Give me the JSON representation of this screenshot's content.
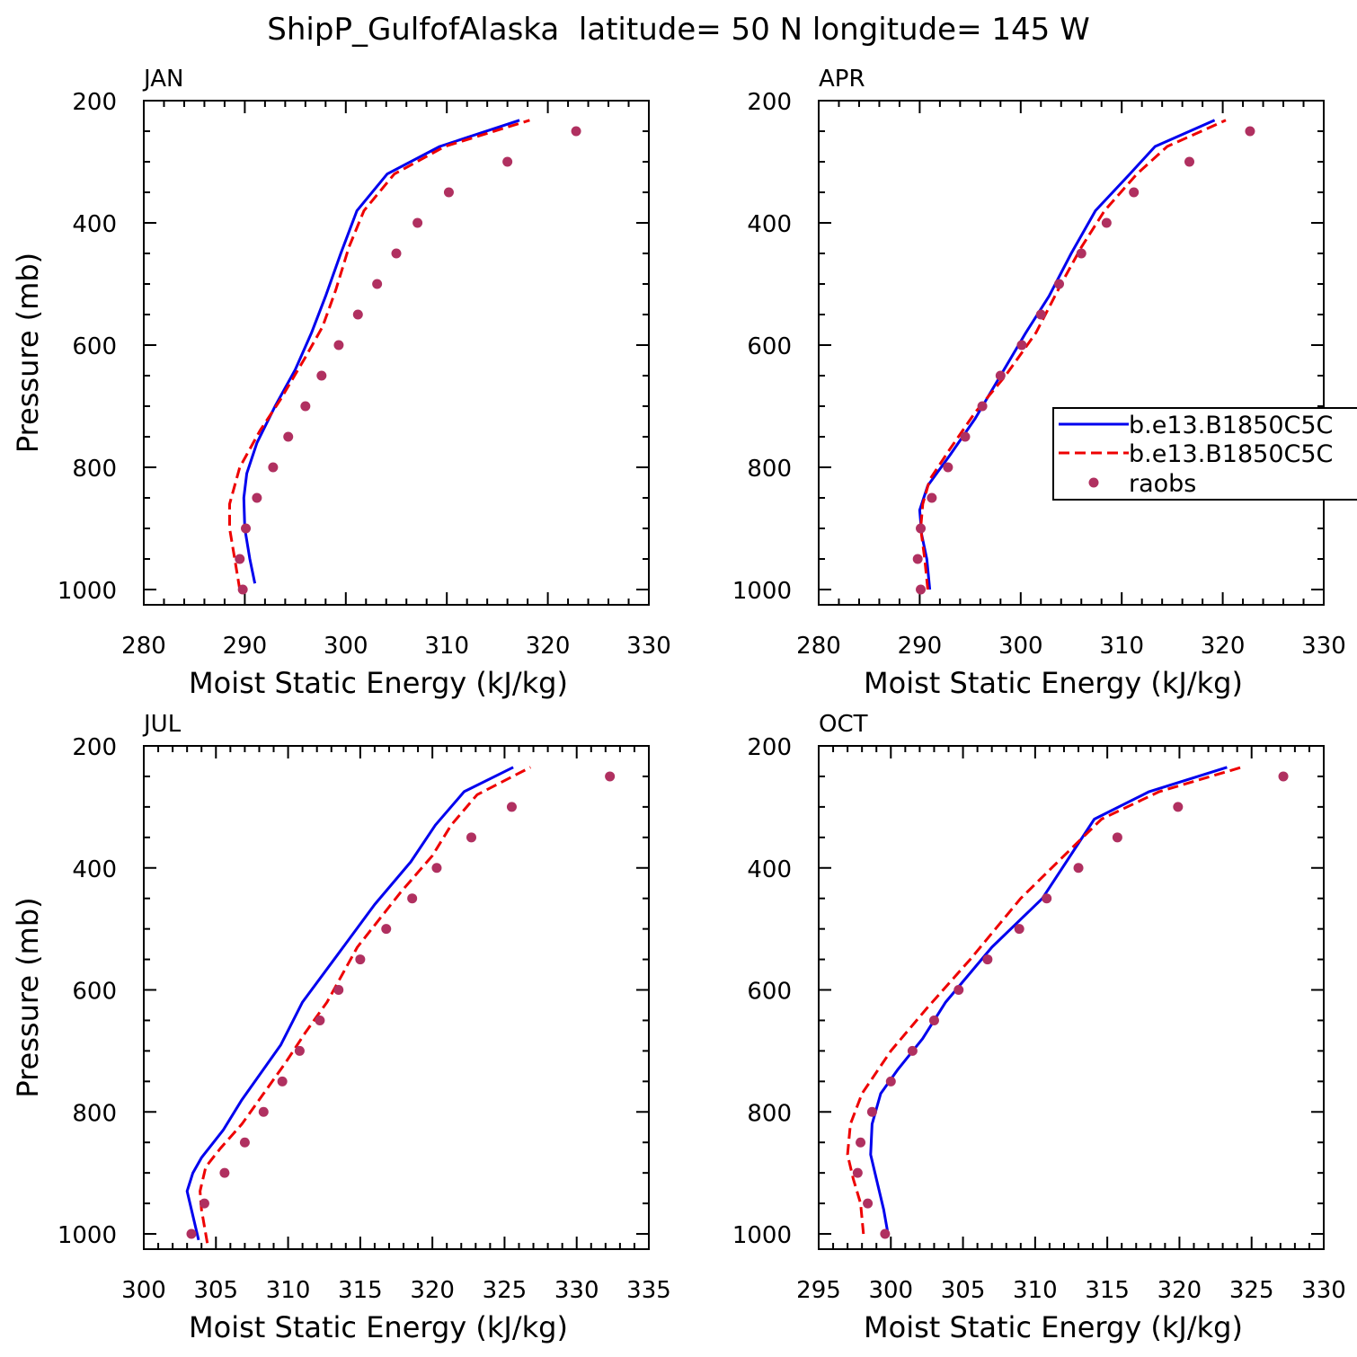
{
  "figure": {
    "title": "ShipP_GulfofAlaska  latitude= 50 N longitude= 145 W",
    "legend": {
      "entries": [
        {
          "label": "b.e13.B1850C5C",
          "style": "solid",
          "color": "#0000ee"
        },
        {
          "label": "b.e13.B1850C5C",
          "style": "dashed",
          "color": "#ee0000"
        },
        {
          "label": "raobs",
          "style": "dots",
          "color": "#b03060"
        }
      ]
    }
  },
  "colors": {
    "model1": "#0000ee",
    "model2": "#ee0000",
    "obs": "#b03060"
  },
  "chart_data": [
    {
      "type": "line",
      "title": "JAN",
      "xlabel": "Moist Static Energy (kJ/kg)",
      "ylabel": "Pressure (mb)",
      "xlim": [
        280,
        330
      ],
      "ylim": [
        1025,
        200
      ],
      "xticks": [
        280,
        290,
        300,
        310,
        320,
        330
      ],
      "yticks": [
        200,
        400,
        600,
        800,
        1000
      ],
      "series": [
        {
          "name": "b.e13.B1850C5C",
          "style": "solid",
          "color": "#0000ee",
          "points": [
            [
              291.0,
              990
            ],
            [
              290.5,
              950
            ],
            [
              290.0,
              900
            ],
            [
              289.9,
              850
            ],
            [
              290.2,
              810
            ],
            [
              291.2,
              760
            ],
            [
              293.0,
              700
            ],
            [
              295.0,
              640
            ],
            [
              296.6,
              580
            ],
            [
              298.0,
              520
            ],
            [
              299.5,
              450
            ],
            [
              301.1,
              380
            ],
            [
              304.1,
              320
            ],
            [
              309.3,
              275
            ],
            [
              317.2,
              232
            ]
          ]
        },
        {
          "name": "b.e13.B1850C5C",
          "style": "dashed",
          "color": "#ee0000",
          "points": [
            [
              289.5,
              1000
            ],
            [
              289.0,
              950
            ],
            [
              288.5,
              900
            ],
            [
              288.5,
              860
            ],
            [
              289.5,
              800
            ],
            [
              291.5,
              740
            ],
            [
              293.5,
              690
            ],
            [
              296.0,
              620
            ],
            [
              297.7,
              570
            ],
            [
              299.0,
              510
            ],
            [
              300.3,
              440
            ],
            [
              301.8,
              380
            ],
            [
              304.8,
              320
            ],
            [
              309.8,
              275
            ],
            [
              318.2,
              232
            ]
          ]
        },
        {
          "name": "raobs",
          "style": "dots",
          "color": "#b03060",
          "points": [
            [
              289.8,
              1000
            ],
            [
              289.5,
              950
            ],
            [
              290.1,
              900
            ],
            [
              291.2,
              850
            ],
            [
              292.8,
              800
            ],
            [
              294.3,
              750
            ],
            [
              296.0,
              700
            ],
            [
              297.6,
              650
            ],
            [
              299.3,
              600
            ],
            [
              301.2,
              550
            ],
            [
              303.1,
              500
            ],
            [
              305.0,
              450
            ],
            [
              307.1,
              400
            ],
            [
              310.2,
              350
            ],
            [
              316.0,
              300
            ],
            [
              322.8,
              250
            ]
          ]
        }
      ]
    },
    {
      "type": "line",
      "title": "APR",
      "xlabel": "Moist Static Energy (kJ/kg)",
      "ylabel": "",
      "xlim": [
        280,
        330
      ],
      "ylim": [
        1025,
        200
      ],
      "xticks": [
        280,
        290,
        300,
        310,
        320,
        330
      ],
      "yticks": [
        200,
        400,
        600,
        800,
        1000
      ],
      "series": [
        {
          "name": "b.e13.B1850C5C",
          "style": "solid",
          "color": "#0000ee",
          "points": [
            [
              291.0,
              1000
            ],
            [
              290.7,
              950
            ],
            [
              290.2,
              910
            ],
            [
              290.0,
              870
            ],
            [
              290.8,
              830
            ],
            [
              293.0,
              780
            ],
            [
              295.5,
              720
            ],
            [
              298.0,
              650
            ],
            [
              300.5,
              580
            ],
            [
              302.8,
              520
            ],
            [
              305.0,
              450
            ],
            [
              307.4,
              380
            ],
            [
              310.8,
              320
            ],
            [
              313.3,
              275
            ],
            [
              319.2,
              232
            ]
          ]
        },
        {
          "name": "b.e13.B1850C5C",
          "style": "dashed",
          "color": "#ee0000",
          "points": [
            [
              290.8,
              1000
            ],
            [
              290.5,
              950
            ],
            [
              290.1,
              900
            ],
            [
              290.3,
              860
            ],
            [
              291.0,
              820
            ],
            [
              293.0,
              770
            ],
            [
              295.5,
              710
            ],
            [
              298.5,
              650
            ],
            [
              301.5,
              580
            ],
            [
              304.0,
              500
            ],
            [
              306.0,
              440
            ],
            [
              308.3,
              380
            ],
            [
              311.5,
              320
            ],
            [
              314.5,
              275
            ],
            [
              320.3,
              232
            ]
          ]
        },
        {
          "name": "raobs",
          "style": "dots",
          "color": "#b03060",
          "points": [
            [
              290.1,
              1000
            ],
            [
              289.8,
              950
            ],
            [
              290.1,
              900
            ],
            [
              291.2,
              850
            ],
            [
              292.8,
              800
            ],
            [
              294.5,
              750
            ],
            [
              296.2,
              700
            ],
            [
              298.0,
              650
            ],
            [
              300.1,
              600
            ],
            [
              302.0,
              550
            ],
            [
              303.8,
              500
            ],
            [
              306.0,
              450
            ],
            [
              308.5,
              400
            ],
            [
              311.2,
              350
            ],
            [
              316.7,
              300
            ],
            [
              322.7,
              250
            ]
          ]
        }
      ]
    },
    {
      "type": "line",
      "title": "JUL",
      "xlabel": "Moist Static Energy (kJ/kg)",
      "ylabel": "Pressure (mb)",
      "xlim": [
        300,
        335
      ],
      "ylim": [
        1025,
        200
      ],
      "xticks": [
        300,
        305,
        310,
        315,
        320,
        325,
        330,
        335
      ],
      "yticks": [
        200,
        400,
        600,
        800,
        1000
      ],
      "series": [
        {
          "name": "b.e13.B1850C5C",
          "style": "solid",
          "color": "#0000ee",
          "points": [
            [
              303.8,
              1010
            ],
            [
              303.3,
              960
            ],
            [
              303.0,
              930
            ],
            [
              303.4,
              900
            ],
            [
              304.0,
              875
            ],
            [
              305.5,
              830
            ],
            [
              306.8,
              780
            ],
            [
              308.0,
              740
            ],
            [
              309.5,
              690
            ],
            [
              311.0,
              620
            ],
            [
              313.5,
              540
            ],
            [
              316.0,
              460
            ],
            [
              318.5,
              390
            ],
            [
              320.2,
              330
            ],
            [
              322.2,
              275
            ],
            [
              325.6,
              235
            ]
          ]
        },
        {
          "name": "b.e13.B1850C5C",
          "style": "dashed",
          "color": "#ee0000",
          "points": [
            [
              304.4,
              1015
            ],
            [
              304.0,
              960
            ],
            [
              303.9,
              930
            ],
            [
              304.3,
              890
            ],
            [
              305.3,
              860
            ],
            [
              306.8,
              820
            ],
            [
              308.3,
              770
            ],
            [
              309.8,
              720
            ],
            [
              311.2,
              670
            ],
            [
              312.7,
              620
            ],
            [
              314.8,
              530
            ],
            [
              317.8,
              440
            ],
            [
              320.0,
              380
            ],
            [
              321.3,
              330
            ],
            [
              323.1,
              280
            ],
            [
              326.8,
              235
            ]
          ]
        },
        {
          "name": "raobs",
          "style": "dots",
          "color": "#b03060",
          "points": [
            [
              303.3,
              1000
            ],
            [
              304.2,
              950
            ],
            [
              305.6,
              900
            ],
            [
              307.0,
              850
            ],
            [
              308.3,
              800
            ],
            [
              309.6,
              750
            ],
            [
              310.8,
              700
            ],
            [
              312.2,
              650
            ],
            [
              313.5,
              600
            ],
            [
              315.0,
              550
            ],
            [
              316.8,
              500
            ],
            [
              318.6,
              450
            ],
            [
              320.3,
              400
            ],
            [
              322.7,
              350
            ],
            [
              325.5,
              300
            ],
            [
              332.3,
              250
            ]
          ]
        }
      ]
    },
    {
      "type": "line",
      "title": "OCT",
      "xlabel": "Moist Static Energy (kJ/kg)",
      "ylabel": "",
      "xlim": [
        295,
        330
      ],
      "ylim": [
        1025,
        200
      ],
      "xticks": [
        295,
        300,
        305,
        310,
        315,
        320,
        325,
        330
      ],
      "yticks": [
        200,
        400,
        600,
        800,
        1000
      ],
      "series": [
        {
          "name": "b.e13.B1850C5C",
          "style": "solid",
          "color": "#0000ee",
          "points": [
            [
              299.8,
              1000
            ],
            [
              299.5,
              960
            ],
            [
              299.0,
              910
            ],
            [
              298.6,
              870
            ],
            [
              298.7,
              820
            ],
            [
              299.3,
              770
            ],
            [
              300.5,
              730
            ],
            [
              302.2,
              680
            ],
            [
              303.8,
              620
            ],
            [
              307.0,
              530
            ],
            [
              310.5,
              450
            ],
            [
              314.1,
              320
            ],
            [
              317.9,
              275
            ],
            [
              323.3,
              235
            ]
          ]
        },
        {
          "name": "b.e13.B1850C5C",
          "style": "dashed",
          "color": "#ee0000",
          "points": [
            [
              298.1,
              1000
            ],
            [
              297.9,
              950
            ],
            [
              297.4,
              910
            ],
            [
              297.0,
              870
            ],
            [
              297.2,
              820
            ],
            [
              298.0,
              770
            ],
            [
              300.0,
              700
            ],
            [
              302.5,
              630
            ],
            [
              305.5,
              550
            ],
            [
              309.0,
              450
            ],
            [
              312.0,
              380
            ],
            [
              314.6,
              320
            ],
            [
              318.6,
              275
            ],
            [
              324.3,
              235
            ]
          ]
        },
        {
          "name": "raobs",
          "style": "dots",
          "color": "#b03060",
          "points": [
            [
              299.6,
              1000
            ],
            [
              298.4,
              950
            ],
            [
              297.7,
              900
            ],
            [
              297.9,
              850
            ],
            [
              298.7,
              800
            ],
            [
              300.0,
              750
            ],
            [
              301.5,
              700
            ],
            [
              303.0,
              650
            ],
            [
              304.7,
              600
            ],
            [
              306.7,
              550
            ],
            [
              308.9,
              500
            ],
            [
              310.8,
              450
            ],
            [
              313.0,
              400
            ],
            [
              315.7,
              350
            ],
            [
              319.9,
              300
            ],
            [
              327.2,
              250
            ]
          ]
        }
      ]
    }
  ]
}
